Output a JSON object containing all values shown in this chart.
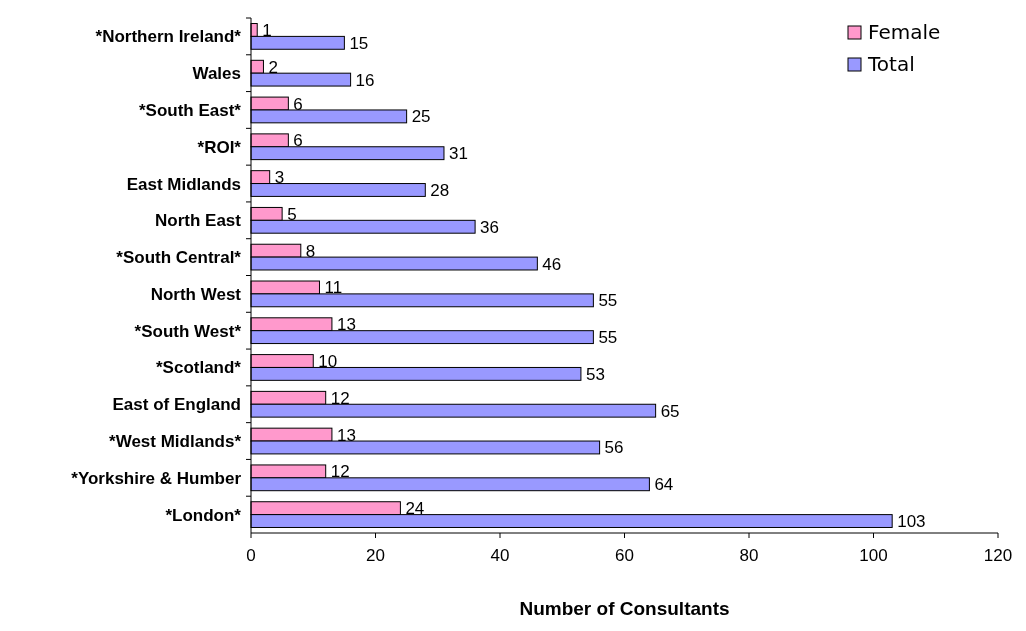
{
  "chart_data": {
    "type": "bar",
    "orientation": "horizontal",
    "xlabel": "Number of Consultants",
    "categories": [
      "*Northern Ireland*",
      "Wales",
      "*South East*",
      "*ROI*",
      "East Midlands",
      "North East",
      "*South Central*",
      "North West",
      "*South West*",
      "*Scotland*",
      "East of England",
      "*West Midlands*",
      "*Yorkshire & Humber",
      "*London*"
    ],
    "series": [
      {
        "name": "Female",
        "color": "#ff99cc",
        "values": [
          1,
          2,
          6,
          6,
          3,
          5,
          8,
          11,
          13,
          10,
          12,
          13,
          12,
          24
        ]
      },
      {
        "name": "Total",
        "color": "#9999ff",
        "values": [
          15,
          16,
          25,
          31,
          28,
          36,
          46,
          55,
          55,
          53,
          65,
          56,
          64,
          103
        ]
      }
    ],
    "xlim": [
      0,
      120
    ],
    "xticks": [
      0,
      20,
      40,
      60,
      80,
      100,
      120
    ],
    "data_labels": true,
    "grid": false,
    "legend": "top right"
  }
}
